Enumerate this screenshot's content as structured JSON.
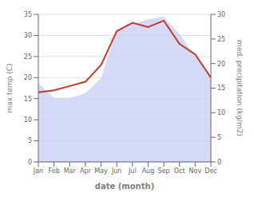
{
  "chart_data": {
    "type": "line",
    "xlabel": "date (month)",
    "ylabel": "max temp (C)",
    "y2label": "med. precipitation (kg/m2)",
    "categories": [
      "Jan",
      "Feb",
      "Mar",
      "Apr",
      "May",
      "Jun",
      "Jul",
      "Aug",
      "Sep",
      "Oct",
      "Nov",
      "Dec"
    ],
    "series": [
      {
        "type": "area",
        "axis": "y2",
        "color": "#c5cdf5",
        "values": [
          16.0,
          13.0,
          13.0,
          14.0,
          17.0,
          27.0,
          28.0,
          29.0,
          29.5,
          26.0,
          21.5,
          17.5
        ]
      },
      {
        "type": "line",
        "color": "#c0392b",
        "values": [
          16.5,
          17.0,
          18.0,
          19.0,
          23.0,
          31.0,
          33.0,
          32.0,
          33.5,
          28.0,
          25.5,
          20.0
        ]
      }
    ],
    "ylim": [
      0,
      35
    ],
    "yticks": [
      0,
      5,
      10,
      15,
      20,
      25,
      30,
      35
    ],
    "y2lim": [
      0,
      30
    ],
    "y2ticks": [
      0,
      5,
      10,
      15,
      20,
      25,
      30
    ],
    "grid": true
  }
}
